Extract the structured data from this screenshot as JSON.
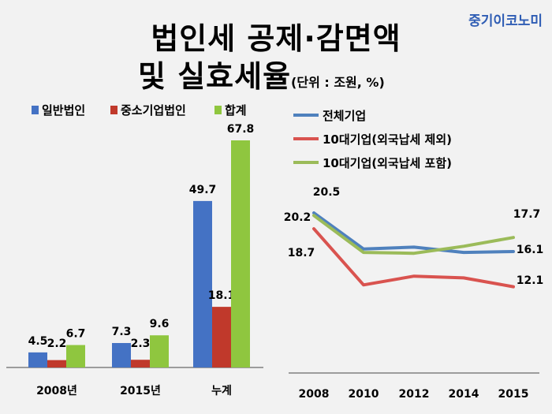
{
  "brand": "중기이코노미",
  "title": {
    "line1": "법인세 공제·감면액",
    "line2": "및 실효세율",
    "unit": "(단위 : 조원, %)"
  },
  "colors": {
    "general": "#4472c4",
    "sme": "#c0392b",
    "total": "#8fc63f",
    "line_all": "#4f81bd",
    "line_top10_excl": "#d9534f",
    "line_top10_incl": "#9bbb59"
  },
  "chart_data": [
    {
      "type": "bar",
      "title": "법인세 공제·감면액",
      "categories": [
        "2008년",
        "2015년",
        "누계"
      ],
      "series": [
        {
          "name": "일반법인",
          "values": [
            4.5,
            7.3,
            49.7
          ]
        },
        {
          "name": "중소기업법인",
          "values": [
            2.2,
            2.3,
            18.1
          ]
        },
        {
          "name": "합계",
          "values": [
            6.7,
            9.6,
            67.8
          ]
        }
      ],
      "ylim": [
        0,
        67.8
      ],
      "legend": "top",
      "grid": false
    },
    {
      "type": "line",
      "title": "실효세율",
      "x": [
        "2008",
        "2010",
        "2012",
        "2014",
        "2015"
      ],
      "series": [
        {
          "name": "전체기업",
          "values": [
            20.5,
            16.4,
            16.6,
            16.0,
            16.1
          ]
        },
        {
          "name": "10대기업(외국납세 제외)",
          "values": [
            18.7,
            12.3,
            13.3,
            13.1,
            12.1
          ]
        },
        {
          "name": "10대기업(외국납세 포함)",
          "values": [
            20.2,
            16.0,
            15.9,
            16.7,
            17.7
          ]
        }
      ],
      "labels": {
        "2008": [
          20.5,
          20.2,
          18.7
        ],
        "2015": [
          17.7,
          16.1,
          12.1
        ]
      },
      "legend": "top",
      "grid": false
    }
  ]
}
